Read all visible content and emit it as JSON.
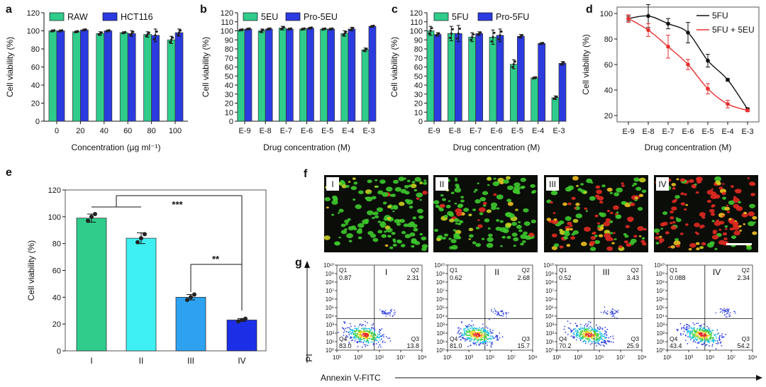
{
  "colors": {
    "green": "#2fcc8b",
    "blue": "#2b3be0",
    "cyan": "#3ff0f2",
    "sky": "#2ea2f0",
    "royal": "#1c2fe6",
    "red": "#e83030",
    "black": "#111111"
  },
  "chart_data": [
    {
      "panel": "a",
      "type": "bar",
      "categories": [
        "0",
        "20",
        "40",
        "60",
        "80",
        "100"
      ],
      "series": [
        {
          "name": "RAW",
          "values": [
            100,
            99,
            97,
            98,
            96,
            90
          ],
          "errors": [
            1,
            1,
            2,
            1,
            3,
            4
          ]
        },
        {
          "name": "HCT116",
          "values": [
            100,
            101,
            100,
            97,
            95,
            98
          ],
          "errors": [
            1,
            1,
            1,
            3,
            7,
            4
          ]
        }
      ],
      "xlabel": "Concentration (µg ml⁻¹)",
      "ylabel": "Cell viability (%)",
      "ylim": [
        0,
        120
      ],
      "yticks": [
        "0",
        "20",
        "40",
        "60",
        "80",
        "100",
        "120"
      ]
    },
    {
      "panel": "b",
      "type": "bar",
      "categories": [
        "E-9",
        "E-8",
        "E-7",
        "E-6",
        "E-5",
        "E-4",
        "E-3"
      ],
      "series": [
        {
          "name": "5EU",
          "values": [
            101,
            100,
            103,
            102,
            102,
            97,
            79
          ],
          "errors": [
            1,
            2,
            2,
            1,
            1,
            3,
            2
          ]
        },
        {
          "name": "Pro-5EU",
          "values": [
            102,
            102,
            102,
            103,
            102,
            102,
            105
          ],
          "errors": [
            1,
            1,
            1,
            1,
            1,
            2,
            1
          ]
        }
      ],
      "xlabel": "Drug concentration (M)",
      "ylabel": "Cell viability (%)",
      "ylim": [
        0,
        120
      ],
      "yticks": [
        "0",
        "10",
        "20",
        "30",
        "40",
        "50",
        "60",
        "70",
        "80",
        "90",
        "100",
        "110",
        "120"
      ]
    },
    {
      "panel": "c",
      "type": "bar",
      "categories": [
        "E-9",
        "E-8",
        "E-7",
        "E-6",
        "E-5",
        "E-4",
        "E-3"
      ],
      "series": [
        {
          "name": "5FU",
          "values": [
            100,
            97,
            93,
            93,
            63,
            48,
            26
          ],
          "errors": [
            5,
            8,
            5,
            8,
            5,
            1,
            2
          ]
        },
        {
          "name": "Pro-5FU",
          "values": [
            96,
            97,
            97,
            95,
            94,
            86,
            64
          ],
          "errors": [
            2,
            9,
            2,
            7,
            2,
            1,
            2
          ]
        }
      ],
      "xlabel": "Drug concentration (M)",
      "ylabel": "Cell viability (%)",
      "ylim": [
        0,
        120
      ],
      "yticks": [
        "0",
        "10",
        "20",
        "30",
        "40",
        "50",
        "60",
        "70",
        "80",
        "90",
        "100",
        "110",
        "120"
      ]
    },
    {
      "panel": "d",
      "type": "line",
      "categories": [
        "E-9",
        "E-8",
        "E-7",
        "E-6",
        "E-5",
        "E-4",
        "E-3"
      ],
      "series": [
        {
          "name": "5FU",
          "values": [
            96,
            98,
            92,
            85,
            63,
            48,
            25
          ],
          "errors": [
            2,
            9,
            4,
            8,
            5,
            1,
            1
          ]
        },
        {
          "name": "5FU + 5EU",
          "values": [
            96,
            87,
            74,
            60,
            41,
            29,
            24
          ],
          "errors": [
            3,
            5,
            9,
            4,
            4,
            3,
            1
          ]
        }
      ],
      "xlabel": "Drug concentration (M)",
      "ylabel": "Cell viability (%)",
      "ylim": [
        15,
        105
      ],
      "yticks": [
        "20",
        "40",
        "60",
        "80",
        "100"
      ]
    },
    {
      "panel": "e",
      "type": "bar",
      "categories": [
        "I",
        "II",
        "III",
        "IV"
      ],
      "values": [
        99,
        84,
        40,
        23
      ],
      "errors": [
        3,
        4,
        2,
        1
      ],
      "points": [
        [
          97,
          100,
          102
        ],
        [
          81,
          84,
          87
        ],
        [
          38,
          40,
          42
        ],
        [
          22,
          23,
          24
        ]
      ],
      "xlabel": "",
      "ylabel": "Cell viability (%)",
      "ylim": [
        0,
        120
      ],
      "yticks": [
        "0",
        "20",
        "40",
        "60",
        "80",
        "100",
        "120"
      ],
      "annotations": [
        "***",
        "**"
      ]
    }
  ],
  "panel_f": {
    "label": "f",
    "images": [
      {
        "label": "I"
      },
      {
        "label": "II"
      },
      {
        "label": "III"
      },
      {
        "label": "IV"
      }
    ]
  },
  "panel_g": {
    "label": "g",
    "ylabel": "PI",
    "xlabel": "Annexin V-FITC",
    "yticks": [
      "10⁰",
      "10¹",
      "10²",
      "10³",
      "10⁴",
      "10⁵",
      "10⁶",
      "10⁷",
      "10⁸",
      "10⁹",
      "10¹⁰"
    ],
    "xticks": [
      "10¹",
      "10³",
      "10⁵",
      "10⁷",
      "10⁹"
    ],
    "plots": [
      {
        "label": "I",
        "q1": "0.87",
        "q2": "2.31",
        "q3": "13.8",
        "q4": "83.0"
      },
      {
        "label": "II",
        "q1": "0.62",
        "q2": "2.68",
        "q3": "15.7",
        "q4": "81.0"
      },
      {
        "label": "III",
        "q1": "0.52",
        "q2": "3.43",
        "q3": "25.9",
        "q4": "70.2"
      },
      {
        "label": "IV",
        "q1": "0.088",
        "q2": "2.34",
        "q3": "54.2",
        "q4": "43.4"
      }
    ]
  }
}
